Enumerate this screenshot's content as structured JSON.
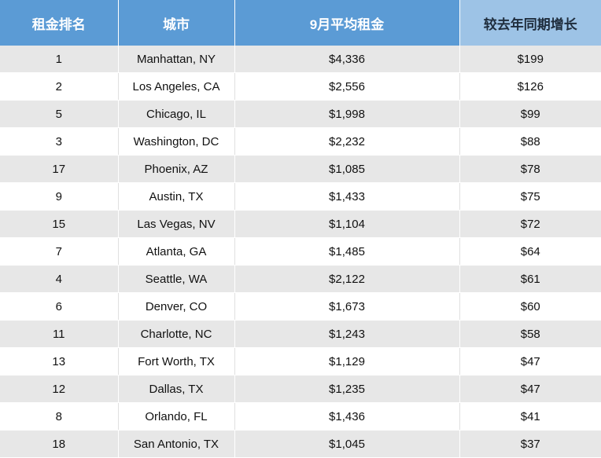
{
  "table": {
    "headers": [
      "租金排名",
      "城市",
      "9月平均租金",
      "较去年同期增长"
    ],
    "rows": [
      [
        "1",
        "Manhattan, NY",
        "$4,336",
        "$199"
      ],
      [
        "2",
        "Los Angeles, CA",
        "$2,556",
        "$126"
      ],
      [
        "5",
        "Chicago, IL",
        "$1,998",
        "$99"
      ],
      [
        "3",
        "Washington, DC",
        "$2,232",
        "$88"
      ],
      [
        "17",
        "Phoenix, AZ",
        "$1,085",
        "$78"
      ],
      [
        "9",
        "Austin, TX",
        "$1,433",
        "$75"
      ],
      [
        "15",
        "Las Vegas, NV",
        "$1,104",
        "$72"
      ],
      [
        "7",
        "Atlanta, GA",
        "$1,485",
        "$64"
      ],
      [
        "4",
        "Seattle, WA",
        "$2,122",
        "$61"
      ],
      [
        "6",
        "Denver, CO",
        "$1,673",
        "$60"
      ],
      [
        "11",
        "Charlotte, NC",
        "$1,243",
        "$58"
      ],
      [
        "13",
        "Fort Worth, TX",
        "$1,129",
        "$47"
      ],
      [
        "12",
        "Dallas, TX",
        "$1,235",
        "$47"
      ],
      [
        "8",
        "Orlando, FL",
        "$1,436",
        "$41"
      ],
      [
        "18",
        "San Antonio, TX",
        "$1,045",
        "$37"
      ]
    ]
  },
  "colors": {
    "header_blue": "#5b9bd5",
    "header_light_blue": "#9dc3e6",
    "row_stripe": "#e7e7e7"
  }
}
